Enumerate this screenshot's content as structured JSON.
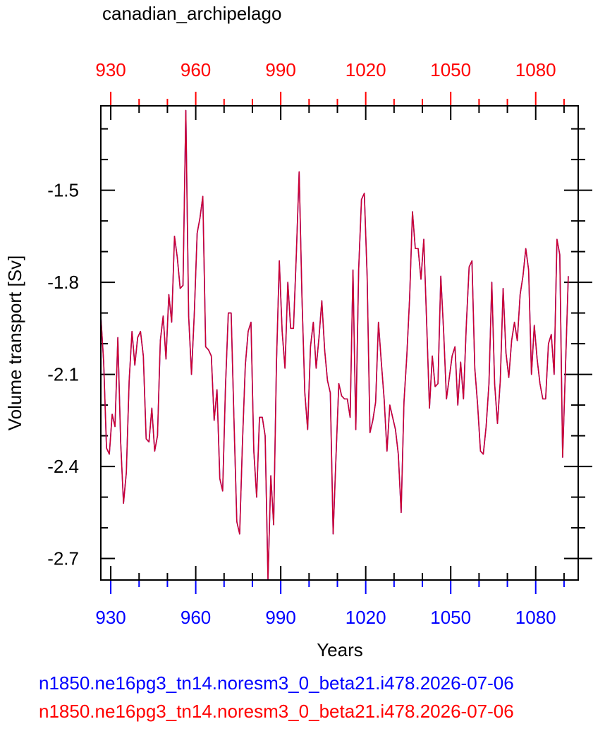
{
  "chart_data": {
    "type": "line",
    "title": "canadian_archipelago",
    "xlabel": "Years",
    "ylabel": "Volume transport [Sv]",
    "xlim": [
      926.5,
      1095
    ],
    "ylim": [
      -2.77,
      -1.225
    ],
    "x_ticks": [
      930,
      960,
      990,
      1020,
      1050,
      1080
    ],
    "x_tick_labels": [
      "930",
      "960",
      "990",
      "1020",
      "1050",
      "1080"
    ],
    "y_ticks": [
      -2.7,
      -2.4,
      -2.1,
      -1.8,
      -1.5
    ],
    "y_tick_labels": [
      "-2.7",
      "-2.4",
      "-2.1",
      "-1.8",
      "-1.5"
    ],
    "bottom_axis_color": "#0000ff",
    "top_axis_color": "#ff0000",
    "series": [
      {
        "name": "n1850.ne16pg3_tn14.noresm3_0_beta21.i478.2026-07-06",
        "color": "#0000ff",
        "start_year": 926.5,
        "values": [
          -1.91,
          -2.06,
          -2.34,
          -2.36,
          -2.23,
          -2.27,
          -1.98,
          -2.32,
          -2.52,
          -2.42,
          -2.12,
          -1.96,
          -2.07,
          -1.98,
          -1.96,
          -2.04,
          -2.31,
          -2.32,
          -2.21,
          -2.35,
          -2.3,
          -1.99,
          -1.91,
          -2.05,
          -1.84,
          -1.93,
          -1.65,
          -1.72,
          -1.82,
          -1.81,
          -1.24,
          -1.91,
          -2.1,
          -1.9,
          -1.64,
          -1.59,
          -1.52,
          -2.01,
          -2.02,
          -2.04,
          -2.25,
          -2.15,
          -2.44,
          -2.48,
          -2.14,
          -1.9,
          -1.9,
          -2.25,
          -2.58,
          -2.62,
          -2.32,
          -2.07,
          -1.96,
          -1.93,
          -2.35,
          -2.5,
          -2.24,
          -2.24,
          -2.3,
          -2.77,
          -2.43,
          -2.59,
          -2.06,
          -1.73,
          -1.96,
          -2.08,
          -1.8,
          -1.95,
          -1.95,
          -1.71,
          -1.44,
          -1.85,
          -2.16,
          -2.28,
          -2.01,
          -1.93,
          -2.08,
          -1.98,
          -1.86,
          -2.02,
          -2.12,
          -2.16,
          -2.62,
          -2.37,
          -2.13,
          -2.17,
          -2.18,
          -2.18,
          -2.24,
          -1.76,
          -2.28,
          -1.76,
          -1.53,
          -1.51,
          -1.78,
          -2.29,
          -2.25,
          -2.19,
          -1.93,
          -2.06,
          -2.18,
          -2.35,
          -2.2,
          -2.24,
          -2.28,
          -2.36,
          -2.55,
          -2.19,
          -2.04,
          -1.85,
          -1.57,
          -1.69,
          -1.69,
          -1.79,
          -1.66,
          -1.93,
          -2.21,
          -2.04,
          -2.14,
          -2.13,
          -1.78,
          -1.96,
          -2.18,
          -2.11,
          -2.04,
          -2.01,
          -2.2,
          -2.06,
          -2.18,
          -1.94,
          -1.75,
          -1.73,
          -2.08,
          -2.2,
          -2.35,
          -2.36,
          -2.27,
          -2.13,
          -1.8,
          -2.13,
          -2.26,
          -2.12,
          -1.82,
          -2.03,
          -2.11,
          -1.99,
          -1.93,
          -1.99,
          -1.84,
          -1.78,
          -1.69,
          -1.76,
          -2.1,
          -1.94,
          -2.05,
          -2.13,
          -2.18,
          -2.18,
          -2.0,
          -1.97,
          -2.1,
          -1.66,
          -1.71,
          -2.37,
          -2.08,
          -1.78
        ]
      },
      {
        "name": "n1850.ne16pg3_tn14.noresm3_0_beta21.i478.2026-07-06",
        "color": "#ff0000",
        "start_year": 926.5,
        "values": [
          -1.91,
          -2.06,
          -2.34,
          -2.36,
          -2.23,
          -2.27,
          -1.98,
          -2.32,
          -2.52,
          -2.42,
          -2.12,
          -1.96,
          -2.07,
          -1.98,
          -1.96,
          -2.04,
          -2.31,
          -2.32,
          -2.21,
          -2.35,
          -2.3,
          -1.99,
          -1.91,
          -2.05,
          -1.84,
          -1.93,
          -1.65,
          -1.72,
          -1.82,
          -1.81,
          -1.24,
          -1.91,
          -2.1,
          -1.9,
          -1.64,
          -1.59,
          -1.52,
          -2.01,
          -2.02,
          -2.04,
          -2.25,
          -2.15,
          -2.44,
          -2.48,
          -2.14,
          -1.9,
          -1.9,
          -2.25,
          -2.58,
          -2.62,
          -2.32,
          -2.07,
          -1.96,
          -1.93,
          -2.35,
          -2.5,
          -2.24,
          -2.24,
          -2.3,
          -2.77,
          -2.43,
          -2.59,
          -2.06,
          -1.73,
          -1.96,
          -2.08,
          -1.8,
          -1.95,
          -1.95,
          -1.71,
          -1.44,
          -1.85,
          -2.16,
          -2.28,
          -2.01,
          -1.93,
          -2.08,
          -1.98,
          -1.86,
          -2.02,
          -2.12,
          -2.16,
          -2.62,
          -2.37,
          -2.13,
          -2.17,
          -2.18,
          -2.18,
          -2.24,
          -1.76,
          -2.28,
          -1.76,
          -1.53,
          -1.51,
          -1.78,
          -2.29,
          -2.25,
          -2.19,
          -1.93,
          -2.06,
          -2.18,
          -2.35,
          -2.2,
          -2.24,
          -2.28,
          -2.36,
          -2.55,
          -2.19,
          -2.04,
          -1.85,
          -1.57,
          -1.69,
          -1.69,
          -1.79,
          -1.66,
          -1.93,
          -2.21,
          -2.04,
          -2.14,
          -2.13,
          -1.78,
          -1.96,
          -2.18,
          -2.11,
          -2.04,
          -2.01,
          -2.2,
          -2.06,
          -2.18,
          -1.94,
          -1.75,
          -1.73,
          -2.08,
          -2.2,
          -2.35,
          -2.36,
          -2.27,
          -2.13,
          -1.8,
          -2.13,
          -2.26,
          -2.12,
          -1.82,
          -2.03,
          -2.11,
          -1.99,
          -1.93,
          -1.99,
          -1.84,
          -1.78,
          -1.69,
          -1.76,
          -2.1,
          -1.94,
          -2.05,
          -2.13,
          -2.18,
          -2.18,
          -2.0,
          -1.97,
          -2.1,
          -1.66,
          -1.71,
          -2.37,
          -2.08,
          -1.78
        ]
      }
    ]
  }
}
